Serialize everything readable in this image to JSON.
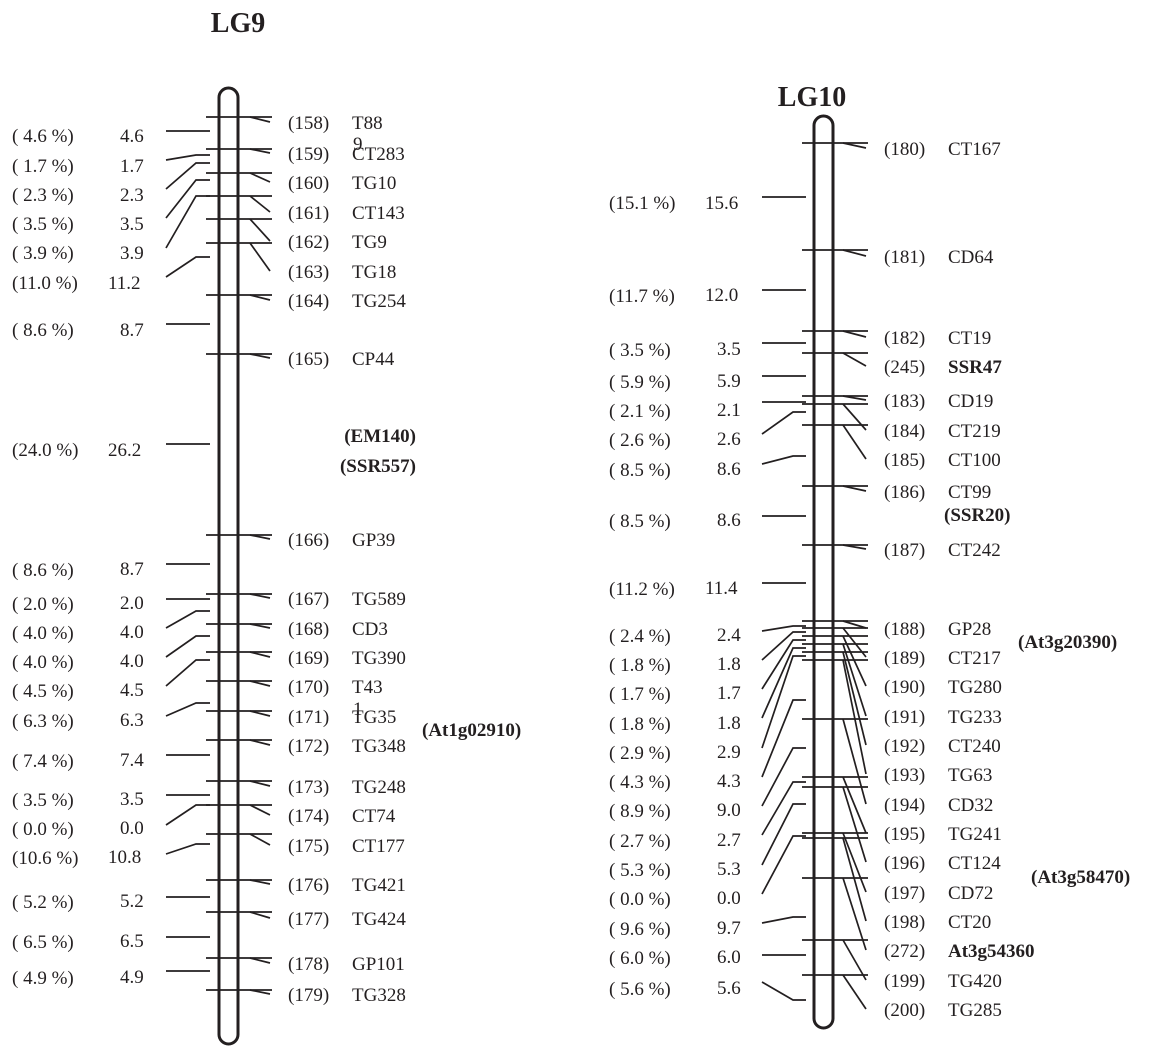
{
  "maps": [
    {
      "title": "LG9",
      "intervals": [
        {
          "pct": "( 4.6 %)",
          "dist": "4.6"
        },
        {
          "pct": "( 1.7 %)",
          "dist": "1.7"
        },
        {
          "pct": "( 2.3 %)",
          "dist": "2.3"
        },
        {
          "pct": "( 3.5 %)",
          "dist": "3.5"
        },
        {
          "pct": "( 3.9 %)",
          "dist": "3.9"
        },
        {
          "pct": "(11.0 %)",
          "dist": "11.2"
        },
        {
          "pct": "( 8.6 %)",
          "dist": "8.7"
        },
        {
          "pct": "(24.0 %)",
          "dist": "26.2"
        },
        {
          "pct": "( 8.6 %)",
          "dist": "8.7"
        },
        {
          "pct": "( 2.0 %)",
          "dist": "2.0"
        },
        {
          "pct": "( 4.0 %)",
          "dist": "4.0"
        },
        {
          "pct": "( 4.0 %)",
          "dist": "4.0"
        },
        {
          "pct": "( 4.5 %)",
          "dist": "4.5"
        },
        {
          "pct": "( 6.3 %)",
          "dist": "6.3"
        },
        {
          "pct": "( 7.4 %)",
          "dist": "7.4"
        },
        {
          "pct": "( 3.5 %)",
          "dist": "3.5"
        },
        {
          "pct": "( 0.0 %)",
          "dist": "0.0"
        },
        {
          "pct": "(10.6 %)",
          "dist": "10.8"
        },
        {
          "pct": "( 5.2 %)",
          "dist": "5.2"
        },
        {
          "pct": "( 6.5 %)",
          "dist": "6.5"
        },
        {
          "pct": "( 4.9 %)",
          "dist": "4.9"
        }
      ],
      "markers": [
        {
          "num": "(158)",
          "name": "T88"
        },
        {
          "num": "(159)",
          "name": "CT283"
        },
        {
          "num": "(160)",
          "name": "TG10"
        },
        {
          "num": "(161)",
          "name": "CT143"
        },
        {
          "num": "(162)",
          "name": "TG9"
        },
        {
          "num": "(163)",
          "name": "TG18"
        },
        {
          "num": "(164)",
          "name": "TG254"
        },
        {
          "num": "(165)",
          "name": "CP44"
        },
        {
          "num": "(166)",
          "name": "GP39"
        },
        {
          "num": "(167)",
          "name": "TG589"
        },
        {
          "num": "(168)",
          "name": "CD3"
        },
        {
          "num": "(169)",
          "name": "TG390"
        },
        {
          "num": "(170)",
          "name": "T43"
        },
        {
          "num": "(171)",
          "name": "TG35"
        },
        {
          "num": "(172)",
          "name": "TG348"
        },
        {
          "num": "(173)",
          "name": "TG248"
        },
        {
          "num": "(174)",
          "name": "CT74"
        },
        {
          "num": "(175)",
          "name": "CT177"
        },
        {
          "num": "(176)",
          "name": "TG421"
        },
        {
          "num": "(177)",
          "name": "TG424"
        },
        {
          "num": "(178)",
          "name": "GP101"
        },
        {
          "num": "(179)",
          "name": "TG328"
        }
      ],
      "stray_marks": [
        "9",
        "1"
      ],
      "bold_annotations": [
        "(EM140)",
        "(SSR557)",
        "(At1g02910)"
      ]
    },
    {
      "title": "LG10",
      "intervals": [
        {
          "pct": "(15.1 %)",
          "dist": "15.6"
        },
        {
          "pct": "(11.7 %)",
          "dist": "12.0"
        },
        {
          "pct": "( 3.5 %)",
          "dist": "3.5"
        },
        {
          "pct": "( 5.9 %)",
          "dist": "5.9"
        },
        {
          "pct": "( 2.1 %)",
          "dist": "2.1"
        },
        {
          "pct": "( 2.6 %)",
          "dist": "2.6"
        },
        {
          "pct": "( 8.5 %)",
          "dist": "8.6"
        },
        {
          "pct": "( 8.5 %)",
          "dist": "8.6"
        },
        {
          "pct": "(11.2 %)",
          "dist": "11.4"
        },
        {
          "pct": "( 2.4 %)",
          "dist": "2.4"
        },
        {
          "pct": "( 1.8 %)",
          "dist": "1.8"
        },
        {
          "pct": "( 1.7 %)",
          "dist": "1.7"
        },
        {
          "pct": "( 1.8 %)",
          "dist": "1.8"
        },
        {
          "pct": "( 2.9 %)",
          "dist": "2.9"
        },
        {
          "pct": "( 4.3 %)",
          "dist": "4.3"
        },
        {
          "pct": "( 8.9 %)",
          "dist": "9.0"
        },
        {
          "pct": "( 2.7 %)",
          "dist": "2.7"
        },
        {
          "pct": "( 5.3 %)",
          "dist": "5.3"
        },
        {
          "pct": "( 0.0 %)",
          "dist": "0.0"
        },
        {
          "pct": "( 9.6 %)",
          "dist": "9.7"
        },
        {
          "pct": "( 6.0 %)",
          "dist": "6.0"
        },
        {
          "pct": "( 5.6 %)",
          "dist": "5.6"
        }
      ],
      "markers": [
        {
          "num": "(180)",
          "name": "CT167"
        },
        {
          "num": "(181)",
          "name": "CD64"
        },
        {
          "num": "(182)",
          "name": "CT19"
        },
        {
          "num": "(245)",
          "name": "SSR47",
          "bold": true
        },
        {
          "num": "(183)",
          "name": "CD19"
        },
        {
          "num": "(184)",
          "name": "CT219"
        },
        {
          "num": "(185)",
          "name": "CT100"
        },
        {
          "num": "(186)",
          "name": "CT99"
        },
        {
          "num": "(187)",
          "name": "CT242"
        },
        {
          "num": "(188)",
          "name": "GP28"
        },
        {
          "num": "(189)",
          "name": "CT217"
        },
        {
          "num": "(190)",
          "name": "TG280"
        },
        {
          "num": "(191)",
          "name": "TG233"
        },
        {
          "num": "(192)",
          "name": "CT240"
        },
        {
          "num": "(193)",
          "name": "TG63"
        },
        {
          "num": "(194)",
          "name": "CD32"
        },
        {
          "num": "(195)",
          "name": "TG241"
        },
        {
          "num": "(196)",
          "name": "CT124"
        },
        {
          "num": "(197)",
          "name": "CD72"
        },
        {
          "num": "(198)",
          "name": "CT20"
        },
        {
          "num": "(272)",
          "name": "At3g54360",
          "bold": true
        },
        {
          "num": "(199)",
          "name": "TG420"
        },
        {
          "num": "(200)",
          "name": "TG285"
        }
      ],
      "bold_annotations": [
        "(SSR20)",
        "(At3g20390)",
        "(At3g58470)"
      ]
    }
  ]
}
